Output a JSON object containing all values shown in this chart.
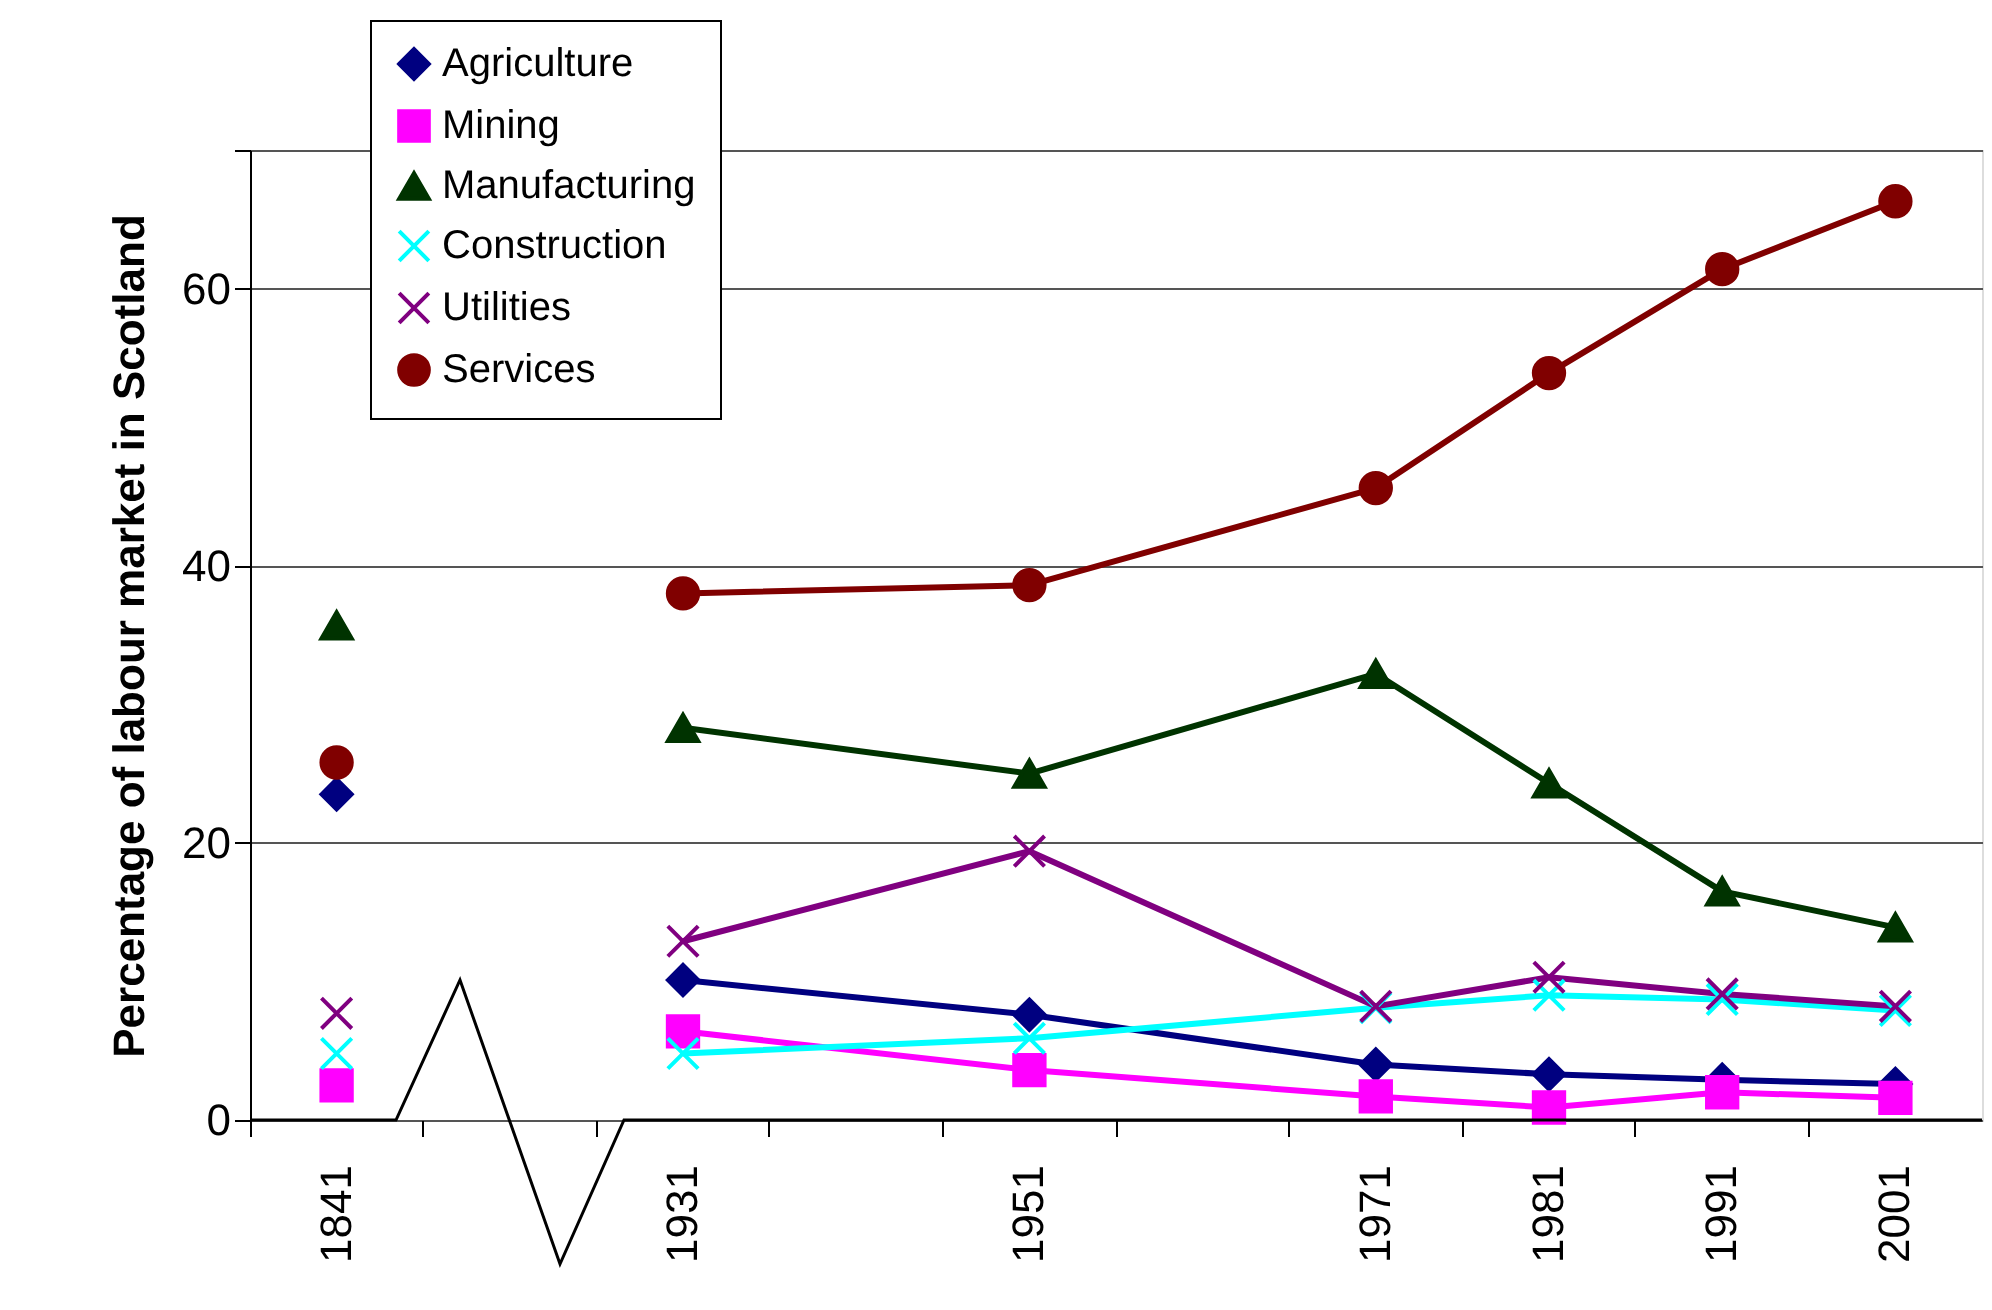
{
  "chart_data": {
    "type": "line",
    "ylabel": "Percentage of labour market in Scotland",
    "categories": [
      "1841",
      null,
      "1931",
      null,
      "1951",
      null,
      "1971",
      "1981",
      "1991",
      "2001"
    ],
    "series": [
      {
        "name": "Agriculture",
        "color": "#000080",
        "marker": "diamond",
        "values": [
          null,
          null,
          10.1,
          null,
          7.6,
          null,
          4.0,
          3.3,
          2.9,
          2.6
        ]
      },
      {
        "name": "Mining",
        "color": "#ff00ff",
        "marker": "square",
        "values": [
          null,
          null,
          6.4,
          null,
          3.6,
          null,
          1.7,
          0.9,
          2.0,
          1.6
        ]
      },
      {
        "name": "Manufacturing",
        "color": "#003300",
        "marker": "triangle",
        "values": [
          null,
          null,
          28.3,
          null,
          25.0,
          null,
          32.2,
          24.3,
          16.5,
          13.9
        ]
      },
      {
        "name": "Construction",
        "color": "#00ffff",
        "marker": "cross",
        "values": [
          null,
          null,
          4.8,
          null,
          5.9,
          null,
          8.1,
          9.0,
          8.7,
          7.9
        ]
      },
      {
        "name": "Utilities",
        "color": "#800080",
        "marker": "cross",
        "values": [
          null,
          null,
          12.9,
          null,
          19.4,
          null,
          8.2,
          10.3,
          9.1,
          8.2
        ]
      },
      {
        "name": "Services",
        "color": "#800000",
        "marker": "circle",
        "values": [
          null,
          null,
          38.0,
          null,
          38.6,
          null,
          45.6,
          53.9,
          61.4,
          66.3
        ]
      },
      {
        "type": "scatter",
        "color": "#000080",
        "marker": "diamond",
        "values": [
          23.5,
          null,
          null,
          null,
          null,
          null,
          null,
          null,
          null,
          null
        ]
      },
      {
        "type": "scatter",
        "color": "#ff00ff",
        "marker": "square",
        "values": [
          2.5,
          null,
          null,
          null,
          null,
          null,
          null,
          null,
          null,
          null
        ]
      },
      {
        "type": "scatter",
        "color": "#003300",
        "marker": "triangle",
        "values": [
          35.7,
          null,
          null,
          null,
          null,
          null,
          null,
          null,
          null,
          null
        ]
      },
      {
        "type": "scatter",
        "color": "#00ffff",
        "marker": "cross",
        "values": [
          4.8,
          null,
          null,
          null,
          null,
          null,
          null,
          null,
          null,
          null
        ]
      },
      {
        "type": "scatter",
        "color": "#800080",
        "marker": "cross",
        "values": [
          7.7,
          null,
          null,
          null,
          null,
          null,
          null,
          null,
          null,
          null
        ]
      },
      {
        "type": "scatter",
        "color": "#800000",
        "marker": "circle",
        "values": [
          25.8,
          null,
          null,
          null,
          null,
          null,
          null,
          null,
          null,
          null
        ]
      }
    ],
    "ylim": [
      0,
      70
    ],
    "yticks": [
      0,
      20,
      40,
      60,
      {
        "value": 70,
        "label": null
      }
    ],
    "grid": "y",
    "legend": "top left"
  }
}
